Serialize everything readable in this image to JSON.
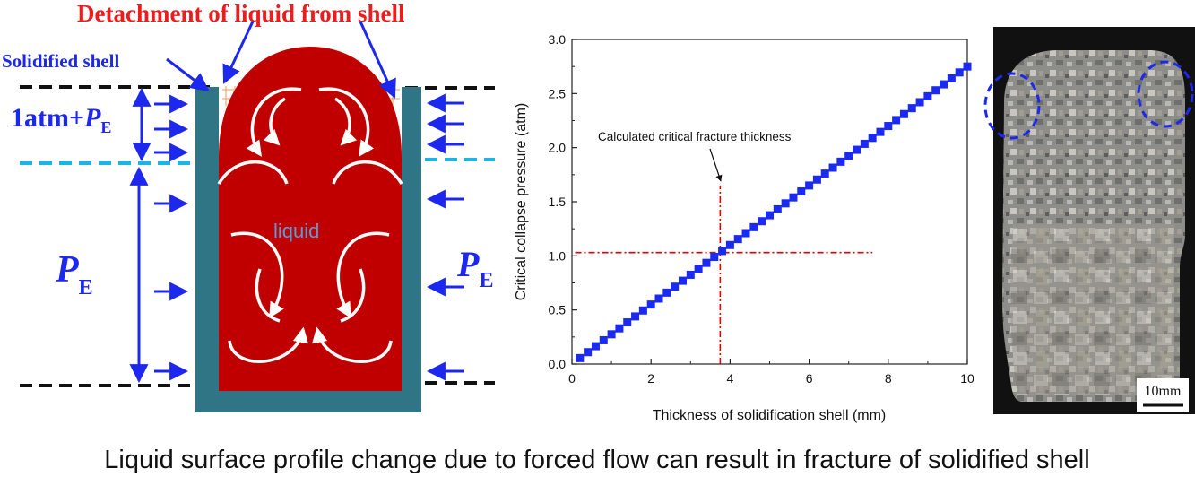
{
  "schematic": {
    "title": "Detachment of liquid from shell",
    "shell_label": "Solidified shell",
    "pressure_label_main": "1atm+",
    "pressure_symbol": "P",
    "pressure_subscript": "E",
    "liquid_label": "liquid"
  },
  "chart_data": {
    "type": "line",
    "xlabel": "Thickness of solidification shell (mm)",
    "ylabel": "Critical collapse pressure (atm)",
    "xlim": [
      0,
      10
    ],
    "ylim": [
      0,
      3.0
    ],
    "x_ticks": [
      "0",
      "2",
      "4",
      "6",
      "8",
      "10"
    ],
    "y_ticks": [
      "0.0",
      "0.5",
      "1.0",
      "1.5",
      "2.0",
      "2.5",
      "3.0"
    ],
    "series": [
      {
        "x": [
          0.2,
          0.4,
          0.6,
          0.8,
          1.0,
          1.2,
          1.4,
          1.6,
          1.8,
          2.0,
          2.2,
          2.4,
          2.6,
          2.8,
          3.0,
          3.2,
          3.4,
          3.6,
          3.8,
          4.0,
          4.2,
          4.4,
          4.6,
          4.8,
          5.0,
          5.2,
          5.4,
          5.6,
          5.8,
          6.0,
          6.2,
          6.4,
          6.6,
          6.8,
          7.0,
          7.2,
          7.4,
          7.6,
          7.8,
          8.0,
          8.2,
          8.4,
          8.6,
          8.8,
          9.0,
          9.2,
          9.4,
          9.6,
          9.8,
          10.0
        ],
        "values": [
          0.055,
          0.11,
          0.165,
          0.22,
          0.275,
          0.33,
          0.385,
          0.44,
          0.495,
          0.55,
          0.605,
          0.66,
          0.715,
          0.77,
          0.825,
          0.88,
          0.935,
          0.99,
          1.045,
          1.1,
          1.155,
          1.21,
          1.265,
          1.32,
          1.375,
          1.43,
          1.485,
          1.54,
          1.595,
          1.65,
          1.705,
          1.76,
          1.815,
          1.87,
          1.925,
          1.98,
          2.035,
          2.09,
          2.145,
          2.2,
          2.255,
          2.31,
          2.365,
          2.42,
          2.475,
          2.53,
          2.585,
          2.64,
          2.695,
          2.75
        ]
      }
    ],
    "annotation": "Calculated critical fracture thickness",
    "critical_point": {
      "x": 3.75,
      "y": 1.03
    }
  },
  "photo": {
    "scale_label": "10mm"
  },
  "caption": "Liquid surface profile change due to forced flow can result in fracture of solidified shell",
  "colors": {
    "shell": "#2f7585",
    "liquid": "#c00000",
    "arrow": "#1d28ee",
    "dash_cyan": "#19b4e8",
    "marker": "#1a2af0",
    "crosshair": "#e00000",
    "title_red": "#ee1c1c"
  }
}
